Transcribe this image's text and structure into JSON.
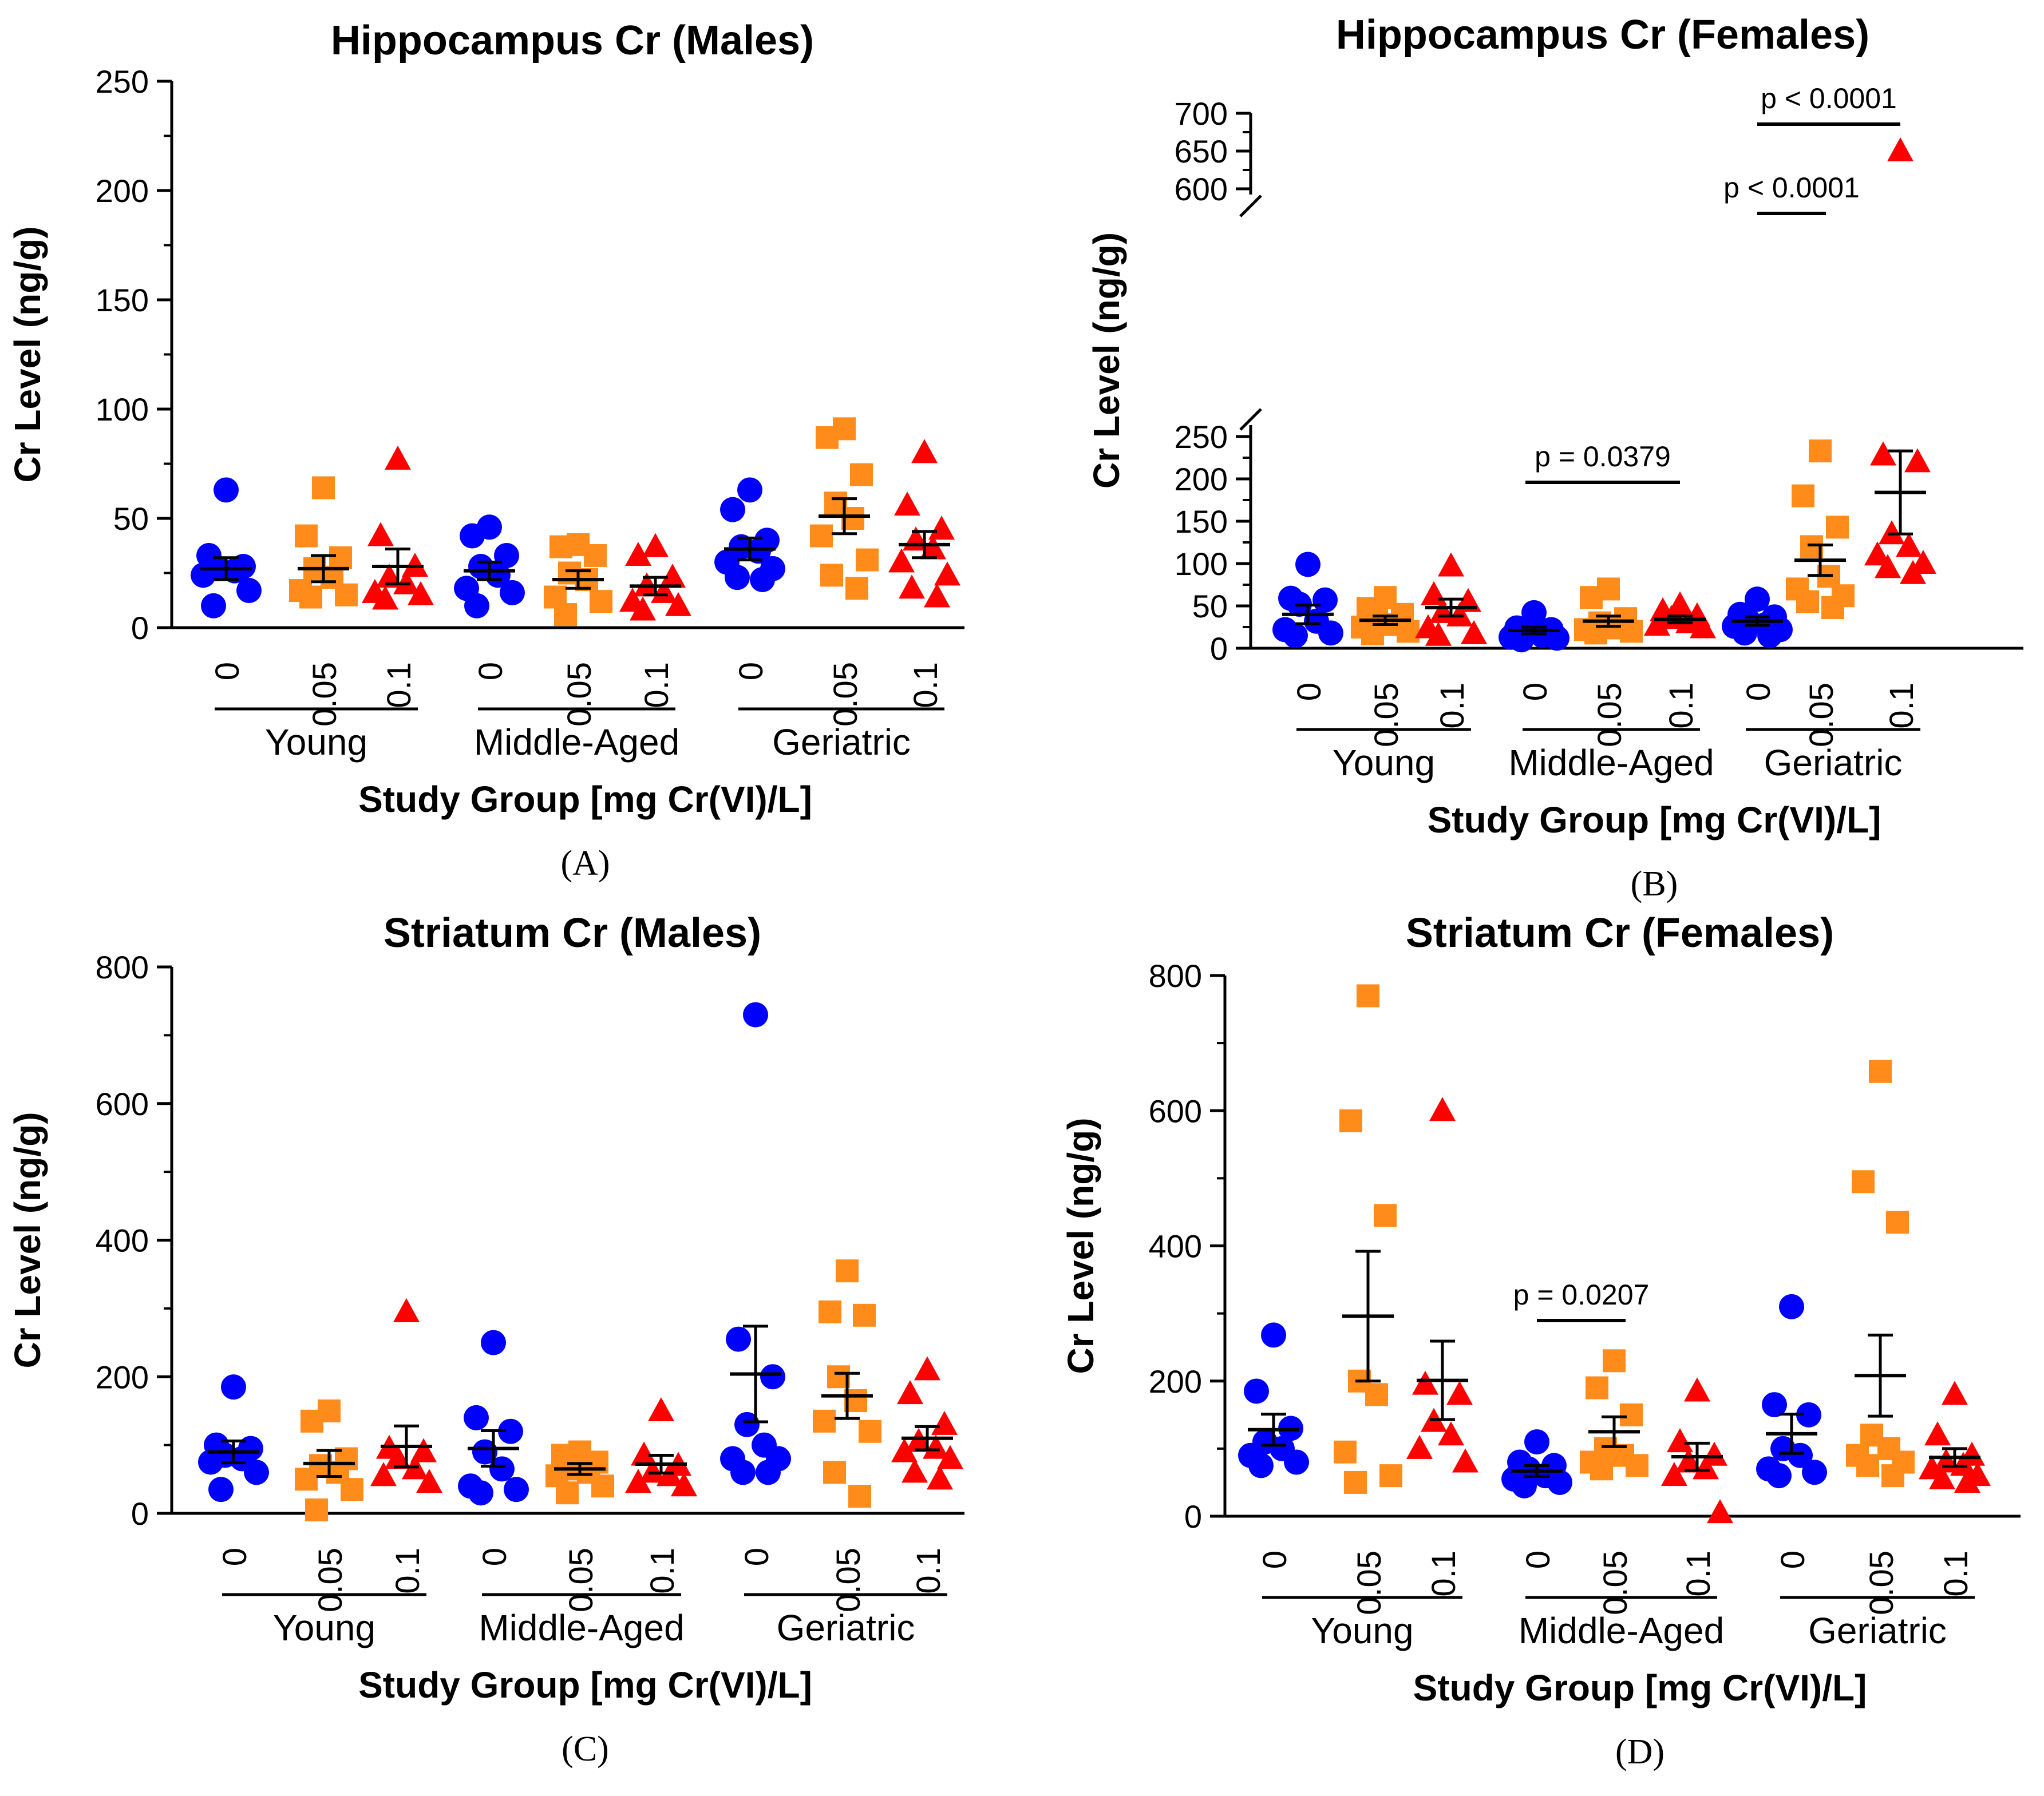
{
  "colors": {
    "dose_0": "#0000ff",
    "dose_0.05": "#ff8c1a",
    "dose_0.1": "#ff0000",
    "axis": "#000000"
  },
  "x_label": "Study Group [mg Cr(VI)/L]",
  "y_label": "Cr Level (ng/g)",
  "doses": [
    "0",
    "0.05",
    "0.1"
  ],
  "groups": [
    "Young",
    "Middle-Aged",
    "Geriatric"
  ],
  "chart_data": [
    {
      "type": "scatter",
      "panel_label": "(A)",
      "title": "Hippocampus Cr (Males)",
      "xlabel": "Study Group [mg Cr(VI)/L]",
      "ylabel": "Cr Level (ng/g)",
      "ylim": [
        0,
        250
      ],
      "yticks": [
        "0",
        "50",
        "100",
        "150",
        "200",
        "250"
      ],
      "series": [
        {
          "group": "Young",
          "dose": "0",
          "values": [
            63,
            33,
            28,
            27,
            26,
            24,
            17,
            10
          ],
          "mean": 27,
          "sem": 5
        },
        {
          "group": "Young",
          "dose": "0.05",
          "values": [
            64,
            42,
            32,
            27,
            23,
            17,
            15,
            14
          ],
          "mean": 27,
          "sem": 6
        },
        {
          "group": "Young",
          "dose": "0.1",
          "values": [
            77,
            42,
            28,
            23,
            20,
            16,
            15,
            13
          ],
          "mean": 28,
          "sem": 8
        },
        {
          "group": "Middle-Aged",
          "dose": "0",
          "values": [
            46,
            42,
            33,
            28,
            24,
            18,
            16,
            10
          ],
          "mean": 26,
          "sem": 4
        },
        {
          "group": "Middle-Aged",
          "dose": "0.05",
          "values": [
            38,
            37,
            33,
            25,
            22,
            14,
            12,
            6
          ],
          "mean": 22,
          "sem": 4
        },
        {
          "group": "Middle-Aged",
          "dose": "0.1",
          "values": [
            37,
            33,
            23,
            19,
            16,
            12,
            10,
            8
          ],
          "mean": 19,
          "sem": 4
        },
        {
          "group": "Geriatric",
          "dose": "0",
          "values": [
            63,
            54,
            40,
            37,
            35,
            30,
            27,
            23,
            22
          ],
          "mean": 36,
          "sem": 5
        },
        {
          "group": "Geriatric",
          "dose": "0.05",
          "values": [
            91,
            87,
            70,
            57,
            50,
            42,
            31,
            24,
            18
          ],
          "mean": 51,
          "sem": 8
        },
        {
          "group": "Geriatric",
          "dose": "0.1",
          "values": [
            80,
            56,
            45,
            40,
            36,
            30,
            24,
            18,
            14
          ],
          "mean": 38,
          "sem": 6
        }
      ],
      "annotations": []
    },
    {
      "type": "scatter",
      "panel_label": "(B)",
      "title": "Hippocampus Cr (Females)",
      "xlabel": "Study Group [mg Cr(VI)/L]",
      "ylabel": "Cr Level (ng/g)",
      "ylim": [
        0,
        700
      ],
      "axis_break": {
        "lower_range": [
          0,
          250
        ],
        "upper_range": [
          600,
          700
        ]
      },
      "yticks": [
        "0",
        "50",
        "100",
        "150",
        "200",
        "250",
        "600",
        "650",
        "700"
      ],
      "series": [
        {
          "group": "Young",
          "dose": "0",
          "values": [
            99,
            59,
            57,
            52,
            32,
            22,
            18,
            15
          ],
          "mean": 40,
          "sem": 11
        },
        {
          "group": "Young",
          "dose": "0.05",
          "values": [
            60,
            47,
            40,
            33,
            28,
            25,
            20,
            17
          ],
          "mean": 33,
          "sem": 5
        },
        {
          "group": "Young",
          "dose": "0.1",
          "values": [
            97,
            63,
            55,
            42,
            38,
            24,
            17,
            15
          ],
          "mean": 48,
          "sem": 10
        },
        {
          "group": "Middle-Aged",
          "dose": "0",
          "values": [
            42,
            24,
            22,
            18,
            15,
            13,
            12,
            10
          ],
          "mean": 21,
          "sem": 4
        },
        {
          "group": "Middle-Aged",
          "dose": "0.05",
          "values": [
            70,
            60,
            35,
            30,
            24,
            22,
            20,
            18
          ],
          "mean": 32,
          "sem": 6
        },
        {
          "group": "Middle-Aged",
          "dose": "0.1",
          "values": [
            51,
            44,
            38,
            35,
            30,
            27,
            24
          ],
          "mean": 34,
          "sem": 4
        },
        {
          "group": "Geriatric",
          "dose": "0",
          "values": [
            58,
            40,
            37,
            32,
            28,
            26,
            22,
            18,
            15
          ],
          "mean": 32,
          "sem": 5
        },
        {
          "group": "Geriatric",
          "dose": "0.05",
          "values": [
            233,
            180,
            143,
            120,
            85,
            70,
            62,
            55,
            48
          ],
          "mean": 104,
          "sem": 18
        },
        {
          "group": "Geriatric",
          "dose": "0.1",
          "values": [
            650,
            228,
            220,
            135,
            120,
            110,
            100,
            95,
            88
          ],
          "mean": 184,
          "sem": 49
        }
      ],
      "annotations": [
        {
          "text": "p = 0.0379",
          "from": "Middle-Aged 0",
          "to": "Middle-Aged 0.1"
        },
        {
          "text": "p < 0.0001",
          "from": "Geriatric 0",
          "to": "Geriatric 0.05"
        },
        {
          "text": "p < 0.0001",
          "from": "Geriatric 0",
          "to": "Geriatric 0.1"
        }
      ]
    },
    {
      "type": "scatter",
      "panel_label": "(C)",
      "title": "Striatum Cr (Males)",
      "xlabel": "Study Group [mg Cr(VI)/L]",
      "ylabel": "Cr Level (ng/g)",
      "ylim": [
        0,
        800
      ],
      "yticks": [
        "0",
        "200",
        "400",
        "600",
        "800"
      ],
      "series": [
        {
          "group": "Young",
          "dose": "0",
          "values": [
            185,
            100,
            95,
            85,
            80,
            75,
            60,
            35
          ],
          "mean": 90,
          "sem": 16
        },
        {
          "group": "Young",
          "dose": "0.05",
          "values": [
            150,
            135,
            80,
            70,
            60,
            50,
            35,
            5
          ],
          "mean": 73,
          "sem": 19
        },
        {
          "group": "Young",
          "dose": "0.1",
          "values": [
            295,
            95,
            90,
            80,
            65,
            55,
            45
          ],
          "mean": 98,
          "sem": 30
        },
        {
          "group": "Middle-Aged",
          "dose": "0",
          "values": [
            250,
            140,
            120,
            90,
            65,
            40,
            35,
            30
          ],
          "mean": 95,
          "sem": 26
        },
        {
          "group": "Middle-Aged",
          "dose": "0.05",
          "values": [
            90,
            85,
            75,
            65,
            60,
            55,
            40,
            30
          ],
          "mean": 65,
          "sem": 8
        },
        {
          "group": "Middle-Aged",
          "dose": "0.1",
          "values": [
            150,
            85,
            70,
            60,
            55,
            45,
            40
          ],
          "mean": 72,
          "sem": 13
        },
        {
          "group": "Geriatric",
          "dose": "0",
          "values": [
            730,
            255,
            200,
            130,
            100,
            80,
            80,
            60,
            60
          ],
          "mean": 204,
          "sem": 70
        },
        {
          "group": "Geriatric",
          "dose": "0.05",
          "values": [
            355,
            295,
            290,
            200,
            165,
            135,
            120,
            60,
            25
          ],
          "mean": 172,
          "sem": 33
        },
        {
          "group": "Geriatric",
          "dose": "0.1",
          "values": [
            210,
            175,
            130,
            105,
            95,
            90,
            80,
            60,
            50
          ],
          "mean": 110,
          "sem": 17
        }
      ],
      "annotations": []
    },
    {
      "type": "scatter",
      "panel_label": "(D)",
      "title": "Striatum Cr (Females)",
      "xlabel": "Study Group [mg Cr(VI)/L]",
      "ylabel": "Cr Level (ng/g)",
      "ylim": [
        0,
        800
      ],
      "yticks": [
        "0",
        "200",
        "400",
        "600",
        "800"
      ],
      "series": [
        {
          "group": "Young",
          "dose": "0",
          "values": [
            268,
            185,
            130,
            110,
            100,
            90,
            80,
            75
          ],
          "mean": 128,
          "sem": 23
        },
        {
          "group": "Young",
          "dose": "0.05",
          "values": [
            770,
            585,
            445,
            200,
            180,
            95,
            60,
            50
          ],
          "mean": 296,
          "sem": 96
        },
        {
          "group": "Young",
          "dose": "0.1",
          "values": [
            600,
            195,
            180,
            140,
            120,
            100,
            80
          ],
          "mean": 201,
          "sem": 58
        },
        {
          "group": "Middle-Aged",
          "dose": "0",
          "values": [
            110,
            80,
            75,
            70,
            60,
            55,
            50,
            45
          ],
          "mean": 67,
          "sem": 8
        },
        {
          "group": "Middle-Aged",
          "dose": "0.05",
          "values": [
            230,
            190,
            150,
            100,
            90,
            80,
            75,
            70
          ],
          "mean": 125,
          "sem": 22
        },
        {
          "group": "Middle-Aged",
          "dose": "0.1",
          "values": [
            185,
            110,
            90,
            80,
            70,
            60,
            5
          ],
          "mean": 88,
          "sem": 20
        },
        {
          "group": "Geriatric",
          "dose": "0",
          "values": [
            310,
            165,
            150,
            100,
            90,
            70,
            65,
            60
          ],
          "mean": 122,
          "sem": 29
        },
        {
          "group": "Geriatric",
          "dose": "0.05",
          "values": [
            658,
            495,
            435,
            120,
            100,
            90,
            80,
            75,
            60
          ],
          "mean": 208,
          "sem": 60
        },
        {
          "group": "Geriatric",
          "dose": "0.1",
          "values": [
            180,
            120,
            90,
            80,
            75,
            70,
            60,
            55,
            50
          ],
          "mean": 87,
          "sem": 13
        }
      ],
      "annotations": [
        {
          "text": "p = 0.0207",
          "from": "Middle-Aged 0",
          "to": "Middle-Aged 0.05"
        }
      ]
    }
  ]
}
